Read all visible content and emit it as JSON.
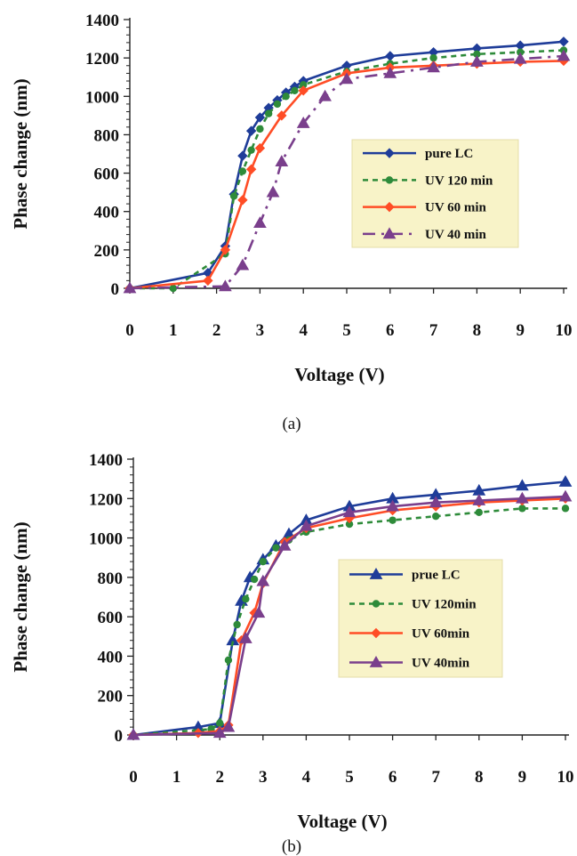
{
  "chart_data": [
    {
      "type": "line",
      "caption": "(a)",
      "xlabel": "Voltage (V)",
      "ylabel": "Phase change (nm)",
      "xlim": [
        0,
        10
      ],
      "ylim": [
        0,
        1400
      ],
      "xticks": [
        "0",
        "1",
        "2",
        "3",
        "4",
        "5",
        "6",
        "7",
        "8",
        "9",
        "10"
      ],
      "yticks": [
        "0",
        "200",
        "400",
        "600",
        "800",
        "1000",
        "1200",
        "1400"
      ],
      "grid": false,
      "legend_position": "center-right",
      "series": [
        {
          "name": "pure LC",
          "color": "#1f3d99",
          "dash": "none",
          "marker": "diamond",
          "x": [
            0,
            1.8,
            2.2,
            2.4,
            2.6,
            2.8,
            3.0,
            3.2,
            3.4,
            3.6,
            3.8,
            4.0,
            5,
            6,
            7,
            8,
            9,
            10
          ],
          "y": [
            0,
            80,
            220,
            490,
            690,
            820,
            890,
            940,
            980,
            1020,
            1050,
            1080,
            1160,
            1210,
            1230,
            1250,
            1265,
            1285
          ]
        },
        {
          "name": "UV 120 min",
          "color": "#2e8b3a",
          "dash": "6,5",
          "marker": "circle",
          "x": [
            0,
            1,
            2.2,
            2.4,
            2.6,
            2.8,
            3.0,
            3.2,
            3.4,
            3.6,
            3.8,
            4.0,
            5,
            6,
            7,
            8,
            9,
            10
          ],
          "y": [
            0,
            0,
            180,
            480,
            610,
            720,
            830,
            910,
            960,
            1000,
            1030,
            1060,
            1130,
            1170,
            1200,
            1220,
            1230,
            1240
          ]
        },
        {
          "name": "UV 60 min",
          "color": "#ff4d26",
          "dash": "none",
          "marker": "diamond",
          "x": [
            0,
            1.8,
            2.2,
            2.6,
            2.8,
            3.0,
            3.5,
            4.0,
            5,
            6,
            7,
            8,
            9,
            10
          ],
          "y": [
            0,
            40,
            200,
            460,
            620,
            730,
            900,
            1030,
            1120,
            1150,
            1160,
            1170,
            1180,
            1185
          ]
        },
        {
          "name": "UV 40 min",
          "color": "#7a3f8c",
          "dash": "14,7,3,7",
          "marker": "triangle",
          "x": [
            0,
            2.2,
            2.6,
            3.0,
            3.3,
            3.5,
            4.0,
            4.5,
            5,
            6,
            7,
            8,
            9,
            10
          ],
          "y": [
            0,
            10,
            120,
            340,
            500,
            660,
            860,
            1000,
            1090,
            1120,
            1150,
            1180,
            1195,
            1210
          ]
        }
      ]
    },
    {
      "type": "line",
      "caption": "(b)",
      "xlabel": "Voltage (V)",
      "ylabel": "Phase change (nm)",
      "xlim": [
        0,
        10
      ],
      "ylim": [
        0,
        1400
      ],
      "xticks": [
        "0",
        "1",
        "2",
        "3",
        "4",
        "5",
        "6",
        "7",
        "8",
        "9",
        "10"
      ],
      "yticks": [
        "0",
        "200",
        "400",
        "600",
        "800",
        "1000",
        "1200",
        "1400"
      ],
      "grid": false,
      "legend_position": "center-right",
      "series": [
        {
          "name": "prue LC",
          "color": "#1f3d99",
          "dash": "none",
          "marker": "triangle",
          "x": [
            0,
            1.5,
            2.0,
            2.3,
            2.5,
            2.7,
            3.0,
            3.3,
            3.6,
            4.0,
            5,
            6,
            7,
            8,
            9,
            10
          ],
          "y": [
            0,
            40,
            60,
            480,
            680,
            800,
            890,
            960,
            1020,
            1090,
            1160,
            1200,
            1220,
            1240,
            1265,
            1285
          ]
        },
        {
          "name": "UV 120min",
          "color": "#2e8b3a",
          "dash": "6,5",
          "marker": "circle",
          "x": [
            0,
            1.8,
            2.0,
            2.2,
            2.4,
            2.6,
            2.8,
            3.0,
            3.3,
            3.6,
            4.0,
            5,
            6,
            7,
            8,
            9,
            10
          ],
          "y": [
            0,
            30,
            60,
            380,
            560,
            690,
            790,
            880,
            950,
            990,
            1030,
            1070,
            1090,
            1110,
            1130,
            1150,
            1150
          ]
        },
        {
          "name": "UV 60min",
          "color": "#ff4d26",
          "dash": "none",
          "marker": "diamond",
          "x": [
            0,
            1.5,
            2.0,
            2.2,
            2.5,
            2.8,
            3.0,
            3.5,
            4.0,
            5,
            6,
            7,
            8,
            9,
            10
          ],
          "y": [
            0,
            10,
            20,
            50,
            480,
            620,
            770,
            980,
            1050,
            1100,
            1140,
            1160,
            1180,
            1190,
            1200
          ]
        },
        {
          "name": "UV 40min",
          "color": "#7a3f8c",
          "dash": "none",
          "marker": "triangle",
          "x": [
            0,
            2.0,
            2.2,
            2.6,
            2.9,
            3.0,
            3.5,
            4.0,
            5,
            6,
            7,
            8,
            9,
            10
          ],
          "y": [
            0,
            10,
            40,
            490,
            620,
            780,
            960,
            1060,
            1130,
            1160,
            1180,
            1190,
            1200,
            1210
          ]
        }
      ]
    }
  ]
}
